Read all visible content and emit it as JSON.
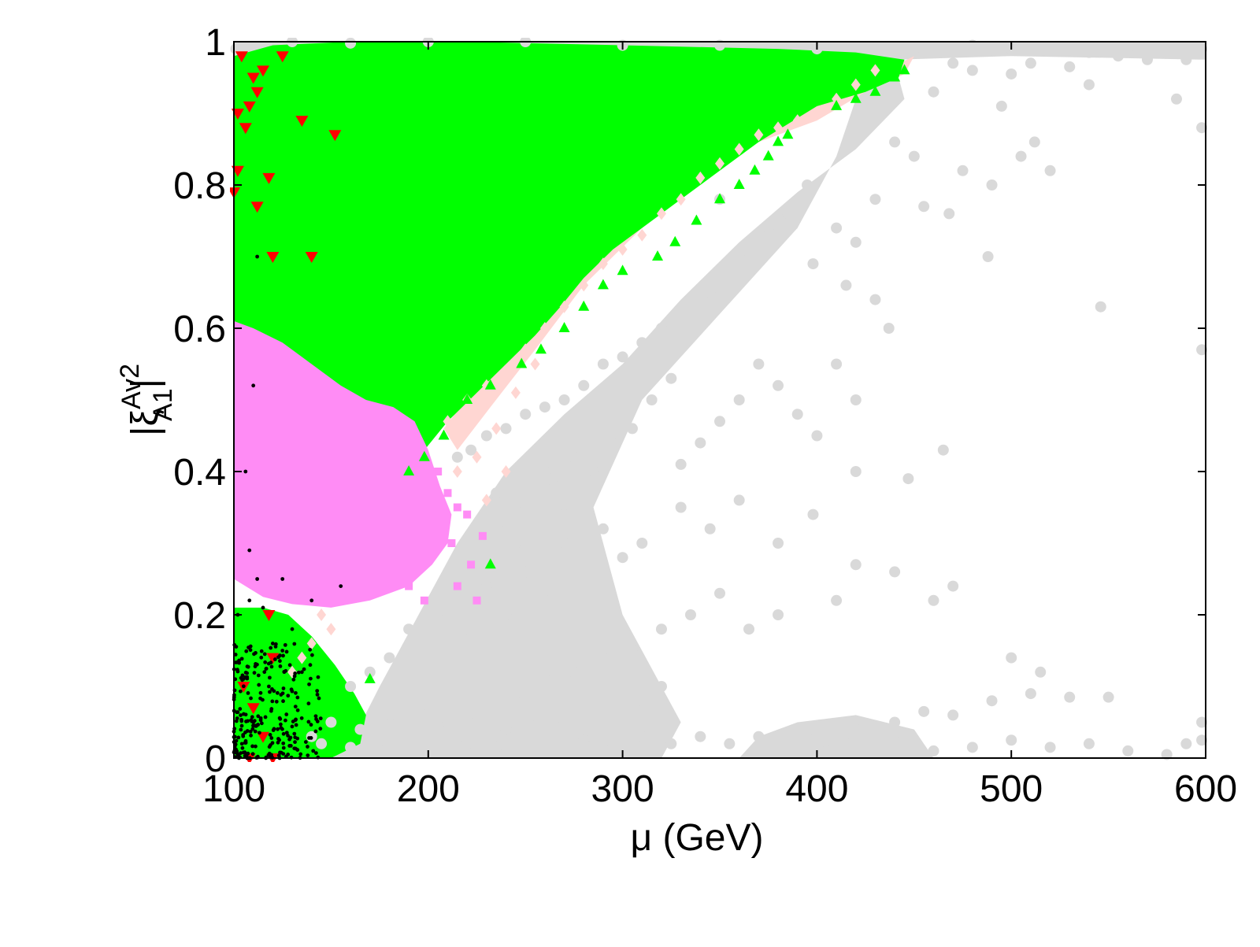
{
  "chart_data": {
    "type": "scatter",
    "title": "",
    "xlabel": "μ (GeV)",
    "ylabel_main": "|ξ",
    "ylabel_sup": "Av",
    "ylabel_sub": "A1",
    "ylabel_tail": "|",
    "ylabel_power": "2",
    "xlim": [
      100,
      600
    ],
    "ylim": [
      0,
      1
    ],
    "x_ticks": [
      100,
      200,
      300,
      400,
      500,
      600
    ],
    "x_tick_labels": [
      "100",
      "200",
      "300",
      "400",
      "500",
      "600"
    ],
    "y_ticks": [
      0,
      0.2,
      0.4,
      0.6,
      0.8,
      1
    ],
    "y_tick_labels": [
      "0",
      "0.2",
      "0.4",
      "0.6",
      "0.8",
      "1"
    ],
    "grid": false,
    "legend": "none",
    "series": [
      {
        "marker": "circle",
        "color": "#d9d9d9",
        "regions": "gray",
        "points": [
          [
            101,
            0.99
          ],
          [
            130,
            1.0
          ],
          [
            160,
            0.998
          ],
          [
            200,
            1.0
          ],
          [
            250,
            1.0
          ],
          [
            300,
            0.995
          ],
          [
            350,
            0.995
          ],
          [
            400,
            0.99
          ],
          [
            450,
            0.99
          ],
          [
            480,
            0.995
          ],
          [
            500,
            0.99
          ],
          [
            520,
            0.99
          ],
          [
            540,
            0.985
          ],
          [
            560,
            0.99
          ],
          [
            580,
            0.985
          ],
          [
            598,
            0.99
          ],
          [
            470,
            0.97
          ],
          [
            480,
            0.96
          ],
          [
            500,
            0.955
          ],
          [
            510,
            0.97
          ],
          [
            530,
            0.965
          ],
          [
            555,
            0.98
          ],
          [
            570,
            0.975
          ],
          [
            590,
            0.975
          ],
          [
            460,
            0.93
          ],
          [
            495,
            0.91
          ],
          [
            540,
            0.94
          ],
          [
            585,
            0.92
          ],
          [
            598,
            0.88
          ],
          [
            505,
            0.84
          ],
          [
            512,
            0.86
          ],
          [
            520,
            0.82
          ],
          [
            475,
            0.82
          ],
          [
            455,
            0.77
          ],
          [
            468,
            0.76
          ],
          [
            490,
            0.8
          ],
          [
            450,
            0.84
          ],
          [
            440,
            0.86
          ],
          [
            430,
            0.78
          ],
          [
            420,
            0.72
          ],
          [
            410,
            0.74
          ],
          [
            395,
            0.8
          ],
          [
            385,
            0.76
          ],
          [
            375,
            0.74
          ],
          [
            360,
            0.7
          ],
          [
            350,
            0.78
          ],
          [
            345,
            0.65
          ],
          [
            332,
            0.62
          ],
          [
            320,
            0.6
          ],
          [
            310,
            0.58
          ],
          [
            300,
            0.56
          ],
          [
            290,
            0.55
          ],
          [
            280,
            0.52
          ],
          [
            270,
            0.5
          ],
          [
            260,
            0.49
          ],
          [
            250,
            0.48
          ],
          [
            240,
            0.46
          ],
          [
            230,
            0.45
          ],
          [
            222,
            0.43
          ],
          [
            215,
            0.42
          ],
          [
            398,
            0.69
          ],
          [
            415,
            0.66
          ],
          [
            430,
            0.64
          ],
          [
            437,
            0.6
          ],
          [
            410,
            0.55
          ],
          [
            420,
            0.5
          ],
          [
            400,
            0.45
          ],
          [
            390,
            0.48
          ],
          [
            380,
            0.52
          ],
          [
            370,
            0.55
          ],
          [
            360,
            0.5
          ],
          [
            350,
            0.47
          ],
          [
            340,
            0.44
          ],
          [
            330,
            0.41
          ],
          [
            546,
            0.63
          ],
          [
            488,
            0.7
          ],
          [
            598,
            0.57
          ],
          [
            465,
            0.43
          ],
          [
            447,
            0.39
          ],
          [
            420,
            0.4
          ],
          [
            398,
            0.34
          ],
          [
            380,
            0.3
          ],
          [
            360,
            0.36
          ],
          [
            345,
            0.32
          ],
          [
            330,
            0.35
          ],
          [
            310,
            0.3
          ],
          [
            300,
            0.28
          ],
          [
            290,
            0.32
          ],
          [
            280,
            0.25
          ],
          [
            270,
            0.3
          ],
          [
            260,
            0.22
          ],
          [
            250,
            0.26
          ],
          [
            240,
            0.2
          ],
          [
            230,
            0.24
          ],
          [
            220,
            0.18
          ],
          [
            210,
            0.2
          ],
          [
            200,
            0.16
          ],
          [
            190,
            0.18
          ],
          [
            180,
            0.14
          ],
          [
            170,
            0.12
          ],
          [
            160,
            0.1
          ],
          [
            420,
            0.27
          ],
          [
            440,
            0.26
          ],
          [
            460,
            0.22
          ],
          [
            470,
            0.24
          ],
          [
            410,
            0.22
          ],
          [
            380,
            0.2
          ],
          [
            365,
            0.18
          ],
          [
            350,
            0.23
          ],
          [
            335,
            0.2
          ],
          [
            320,
            0.18
          ],
          [
            305,
            0.15
          ],
          [
            290,
            0.14
          ],
          [
            275,
            0.12
          ],
          [
            260,
            0.11
          ],
          [
            245,
            0.09
          ],
          [
            500,
            0.14
          ],
          [
            515,
            0.12
          ],
          [
            530,
            0.085
          ],
          [
            550,
            0.085
          ],
          [
            510,
            0.09
          ],
          [
            490,
            0.08
          ],
          [
            470,
            0.06
          ],
          [
            455,
            0.065
          ],
          [
            440,
            0.05
          ],
          [
            420,
            0.04
          ],
          [
            400,
            0.035
          ],
          [
            385,
            0.02
          ],
          [
            370,
            0.03
          ],
          [
            355,
            0.02
          ],
          [
            340,
            0.03
          ],
          [
            325,
            0.02
          ],
          [
            310,
            0.03
          ],
          [
            295,
            0.02
          ],
          [
            280,
            0.025
          ],
          [
            265,
            0.015
          ],
          [
            250,
            0.02
          ],
          [
            235,
            0.015
          ],
          [
            220,
            0.02
          ],
          [
            205,
            0.01
          ],
          [
            190,
            0.015
          ],
          [
            175,
            0.01
          ],
          [
            160,
            0.015
          ],
          [
            145,
            0.02
          ],
          [
            598,
            0.025
          ],
          [
            598,
            0.05
          ],
          [
            590,
            0.02
          ],
          [
            580,
            0.005
          ],
          [
            560,
            0.01
          ],
          [
            540,
            0.02
          ],
          [
            520,
            0.015
          ],
          [
            500,
            0.025
          ],
          [
            480,
            0.015
          ],
          [
            460,
            0.01
          ],
          [
            445,
            0.03
          ],
          [
            430,
            0.015
          ],
          [
            415,
            0.02
          ],
          [
            405,
            0.01
          ],
          [
            310,
            0.08
          ],
          [
            320,
            0.1
          ],
          [
            300,
            0.06
          ],
          [
            285,
            0.07
          ],
          [
            270,
            0.05
          ],
          [
            255,
            0.06
          ],
          [
            240,
            0.04
          ],
          [
            225,
            0.06
          ],
          [
            210,
            0.05
          ],
          [
            195,
            0.07
          ],
          [
            180,
            0.06
          ],
          [
            165,
            0.04
          ],
          [
            150,
            0.05
          ],
          [
            140,
            0.03
          ],
          [
            250,
            0.35
          ],
          [
            240,
            0.33
          ],
          [
            235,
            0.37
          ],
          [
            265,
            0.38
          ],
          [
            275,
            0.42
          ],
          [
            285,
            0.4
          ],
          [
            295,
            0.44
          ],
          [
            305,
            0.46
          ],
          [
            315,
            0.5
          ],
          [
            325,
            0.53
          ],
          [
            260,
            0.4
          ],
          [
            245,
            0.3
          ],
          [
            255,
            0.28
          ],
          [
            270,
            0.34
          ]
        ]
      },
      {
        "marker": "diamond",
        "color": "#ffd6d2",
        "regions": "pink",
        "points": [
          [
            430,
            0.96
          ],
          [
            420,
            0.94
          ],
          [
            410,
            0.92
          ],
          [
            400,
            0.9
          ],
          [
            390,
            0.89
          ],
          [
            380,
            0.88
          ],
          [
            370,
            0.87
          ],
          [
            360,
            0.85
          ],
          [
            350,
            0.83
          ],
          [
            340,
            0.81
          ],
          [
            330,
            0.78
          ],
          [
            320,
            0.76
          ],
          [
            310,
            0.73
          ],
          [
            300,
            0.71
          ],
          [
            290,
            0.69
          ],
          [
            280,
            0.66
          ],
          [
            270,
            0.63
          ],
          [
            260,
            0.6
          ],
          [
            250,
            0.57
          ],
          [
            240,
            0.54
          ],
          [
            230,
            0.52
          ],
          [
            220,
            0.5
          ],
          [
            210,
            0.47
          ],
          [
            255,
            0.55
          ],
          [
            245,
            0.51
          ],
          [
            235,
            0.46
          ],
          [
            225,
            0.42
          ],
          [
            215,
            0.4
          ],
          [
            230,
            0.36
          ],
          [
            240,
            0.4
          ],
          [
            145,
            0.2
          ],
          [
            150,
            0.18
          ],
          [
            140,
            0.16
          ],
          [
            135,
            0.14
          ],
          [
            130,
            0.12
          ]
        ]
      },
      {
        "marker": "square",
        "color": "#ff8cf5",
        "regions": "magenta",
        "points": [
          [
            205,
            0.4
          ],
          [
            210,
            0.37
          ],
          [
            215,
            0.35
          ],
          [
            220,
            0.34
          ],
          [
            205,
            0.32
          ],
          [
            212,
            0.3
          ],
          [
            222,
            0.27
          ],
          [
            225,
            0.22
          ],
          [
            215,
            0.24
          ],
          [
            198,
            0.22
          ],
          [
            190,
            0.24
          ],
          [
            185,
            0.26
          ],
          [
            228,
            0.31
          ]
        ]
      },
      {
        "marker": "triangle-up",
        "color": "#00ff00",
        "regions": "green",
        "points": [
          [
            445,
            0.96
          ],
          [
            440,
            0.95
          ],
          [
            430,
            0.93
          ],
          [
            420,
            0.92
          ],
          [
            410,
            0.91
          ],
          [
            385,
            0.87
          ],
          [
            380,
            0.86
          ],
          [
            375,
            0.84
          ],
          [
            368,
            0.82
          ],
          [
            360,
            0.8
          ],
          [
            350,
            0.78
          ],
          [
            338,
            0.75
          ],
          [
            327,
            0.72
          ],
          [
            318,
            0.7
          ],
          [
            300,
            0.68
          ],
          [
            290,
            0.66
          ],
          [
            280,
            0.63
          ],
          [
            270,
            0.6
          ],
          [
            258,
            0.57
          ],
          [
            248,
            0.55
          ],
          [
            232,
            0.52
          ],
          [
            220,
            0.5
          ],
          [
            208,
            0.45
          ],
          [
            198,
            0.42
          ],
          [
            190,
            0.4
          ],
          [
            232,
            0.27
          ],
          [
            170,
            0.11
          ],
          [
            160,
            0.07
          ],
          [
            150,
            0.1
          ],
          [
            145,
            0.12
          ],
          [
            140,
            0.08
          ],
          [
            135,
            0.05
          ],
          [
            130,
            0.03
          ]
        ]
      },
      {
        "marker": "triangle-down",
        "color": "#ff0000",
        "regions": "red",
        "points": [
          [
            104,
            0.98
          ],
          [
            110,
            0.95
          ],
          [
            115,
            0.96
          ],
          [
            112,
            0.93
          ],
          [
            108,
            0.91
          ],
          [
            102,
            0.9
          ],
          [
            106,
            0.88
          ],
          [
            135,
            0.89
          ],
          [
            152,
            0.87
          ],
          [
            102,
            0.82
          ],
          [
            100,
            0.79
          ],
          [
            112,
            0.77
          ],
          [
            118,
            0.81
          ],
          [
            120,
            0.7
          ],
          [
            140,
            0.7
          ],
          [
            118,
            0.2
          ],
          [
            120,
            0.14
          ],
          [
            105,
            0.1
          ],
          [
            110,
            0.07
          ],
          [
            115,
            0.03
          ],
          [
            108,
            0.0
          ],
          [
            120,
            0.0
          ],
          [
            125,
            0.98
          ]
        ]
      },
      {
        "marker": "dot",
        "color": "#000000",
        "regions": "black",
        "points": [
          [
            110,
            0.52
          ],
          [
            106,
            0.4
          ],
          [
            108,
            0.29
          ],
          [
            112,
            0.25
          ],
          [
            125,
            0.25
          ],
          [
            155,
            0.24
          ],
          [
            140,
            0.22
          ],
          [
            115,
            0.21
          ],
          [
            102,
            0.2
          ],
          [
            108,
            0.22
          ],
          [
            130,
            0.18
          ],
          [
            112,
            0.7
          ],
          [
            120,
            0.16
          ],
          [
            125,
            0.15
          ],
          [
            135,
            0.12
          ],
          [
            118,
            0.1
          ],
          [
            110,
            0.05
          ]
        ]
      }
    ]
  }
}
